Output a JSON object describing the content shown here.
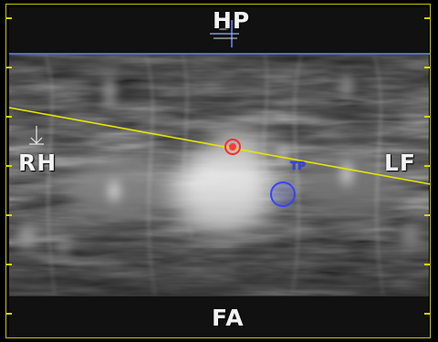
{
  "viewer": {
    "orientation": {
      "top": "HP",
      "bottom": "FA",
      "left": "RH",
      "right": "LF"
    },
    "marker_label": "TP"
  },
  "colors": {
    "frame": "#c8c800",
    "slice_line": "#e6e600",
    "crosshair": "#6e8cff",
    "marker": "#3344ff",
    "point": "#ff2a2a"
  },
  "icons": {
    "top_crosshair": "crosshair-icon",
    "left_arrow": "down-arrow-icon"
  }
}
